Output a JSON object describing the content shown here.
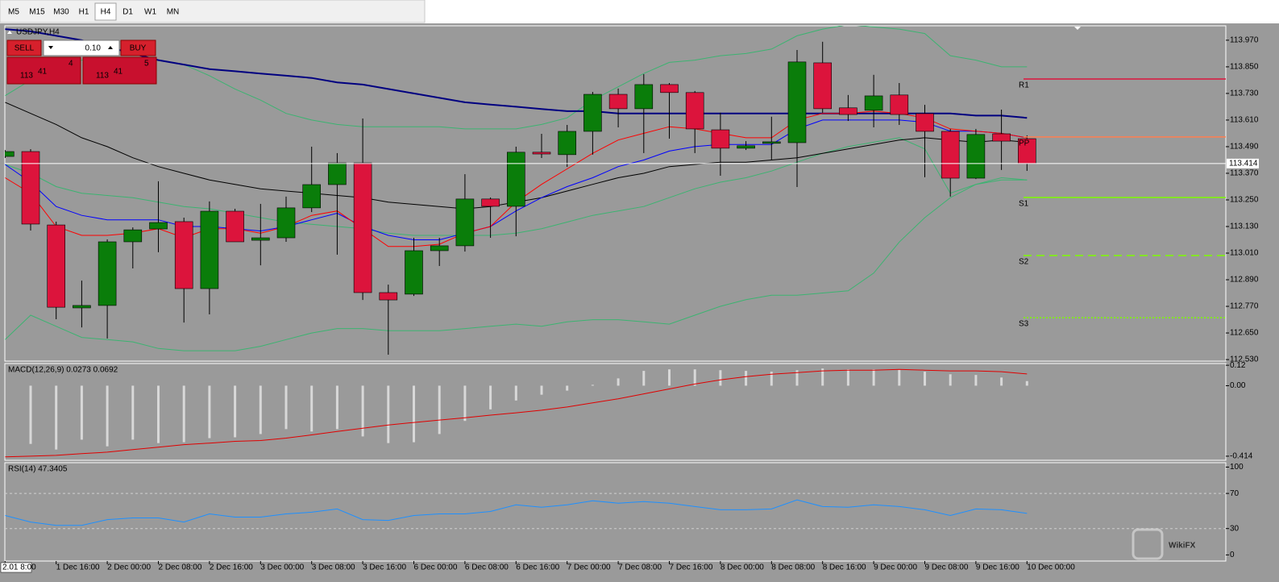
{
  "toolbar": {
    "timeframes": [
      "M5",
      "M15",
      "M30",
      "H1",
      "H4",
      "D1",
      "W1",
      "MN"
    ],
    "active": "H4"
  },
  "trade_panel": {
    "sell_label": "SELL",
    "buy_label": "BUY",
    "volume": "0.10",
    "sell_price": {
      "big": "113",
      "main": "41",
      "small": "4"
    },
    "buy_price": {
      "big": "113",
      "main": "41",
      "small": "5"
    }
  },
  "price_chart": {
    "type": "candlestick",
    "title": "USDJPY,H4",
    "categories": [
      "2.01 8:00",
      null,
      "1 Dec 16:00",
      null,
      "2 Dec 00:00",
      null,
      "2 Dec 08:00",
      null,
      "2 Dec 16:00",
      null,
      "3 Dec 00:00",
      null,
      "3 Dec 08:00",
      null,
      "3 Dec 16:00",
      null,
      "6 Dec 00:00",
      null,
      "6 Dec 08:00",
      null,
      "6 Dec 16:00",
      null,
      "7 Dec 00:00",
      null,
      "7 Dec 08:00",
      null,
      "7 Dec 16:00",
      null,
      "8 Dec 00:00",
      null,
      "8 Dec 08:00",
      null,
      "8 Dec 16:00",
      null,
      "9 Dec 00:00",
      null,
      "9 Dec 08:00",
      null,
      "9 Dec 16:00",
      null,
      "10 Dec 00:00"
    ],
    "open": [
      113.446,
      113.468,
      113.137,
      112.763,
      112.774,
      113.061,
      113.119,
      113.152,
      112.85,
      113.199,
      113.068,
      113.079,
      113.214,
      113.319,
      113.417,
      112.832,
      112.825,
      113.021,
      113.043,
      113.254,
      113.221,
      113.465,
      113.454,
      113.559,
      113.726,
      113.661,
      113.77,
      113.734,
      113.566,
      113.483,
      113.505,
      113.508,
      113.868,
      113.665,
      113.654,
      113.723,
      113.639,
      113.559,
      113.348,
      113.548,
      113.526
    ],
    "high": [
      113.475,
      113.479,
      113.152,
      112.886,
      113.072,
      113.126,
      113.334,
      113.17,
      113.243,
      113.21,
      113.232,
      113.265,
      113.49,
      113.461,
      113.617,
      112.868,
      113.079,
      113.079,
      113.366,
      113.261,
      113.49,
      113.548,
      113.588,
      113.737,
      113.752,
      113.817,
      113.777,
      113.741,
      113.643,
      113.515,
      113.625,
      113.926,
      113.963,
      113.723,
      113.814,
      113.777,
      113.679,
      113.57,
      113.57,
      113.657,
      113.541
    ],
    "low": [
      113.439,
      113.112,
      112.712,
      112.675,
      112.625,
      112.941,
      113.014,
      112.697,
      112.734,
      113.061,
      112.955,
      113.061,
      113.195,
      113.003,
      112.799,
      112.552,
      112.817,
      112.952,
      113.017,
      113.079,
      113.086,
      113.439,
      113.399,
      113.454,
      113.577,
      113.461,
      113.526,
      113.461,
      113.359,
      113.475,
      113.432,
      113.308,
      113.643,
      113.606,
      113.577,
      113.588,
      113.352,
      113.265,
      113.344,
      113.385,
      113.381
    ],
    "close": [
      113.468,
      113.141,
      112.766,
      112.774,
      113.061,
      113.115,
      113.148,
      112.85,
      113.199,
      113.061,
      113.079,
      113.214,
      113.319,
      113.417,
      112.832,
      112.799,
      113.021,
      113.043,
      113.254,
      113.221,
      113.465,
      113.457,
      113.559,
      113.726,
      113.661,
      113.77,
      113.734,
      113.57,
      113.483,
      113.494,
      113.512,
      113.872,
      113.661,
      113.635,
      113.719,
      113.635,
      113.559,
      113.348,
      113.545,
      113.515,
      113.414
    ],
    "up_color": "#0a7d0a",
    "down_color": "#dc143c",
    "ylim": [
      112.523,
      114.035
    ],
    "yticks": [
      {
        "value": 113.97,
        "label": "113.970"
      },
      {
        "value": 113.85,
        "label": "113.850"
      },
      {
        "value": 113.73,
        "label": "113.730"
      },
      {
        "value": 113.61,
        "label": "113.610"
      },
      {
        "value": 113.49,
        "label": "113.490"
      },
      {
        "value": 113.37,
        "label": "113.370"
      },
      {
        "value": 113.25,
        "label": "113.250"
      },
      {
        "value": 113.13,
        "label": "113.130"
      },
      {
        "value": 113.01,
        "label": "113.010"
      },
      {
        "value": 112.89,
        "label": "112.890"
      },
      {
        "value": 112.77,
        "label": "112.770"
      },
      {
        "value": 112.65,
        "label": "112.650"
      },
      {
        "value": 112.53,
        "label": "112.530"
      }
    ],
    "lines": [
      {
        "color": "#3cb371",
        "values": [
          113.72,
          113.79,
          113.84,
          113.88,
          113.89,
          113.89,
          113.88,
          113.86,
          113.81,
          113.75,
          113.7,
          113.64,
          113.61,
          113.59,
          113.58,
          113.58,
          113.58,
          113.58,
          113.57,
          113.57,
          113.57,
          113.59,
          113.62,
          113.7,
          113.76,
          113.82,
          113.87,
          113.88,
          113.9,
          113.91,
          113.93,
          113.99,
          114.02,
          114.04,
          114.03,
          114.02,
          114.0,
          113.9,
          113.88,
          113.85,
          113.85
        ]
      },
      {
        "color": "#3cb371",
        "values": [
          113.41,
          113.37,
          113.31,
          113.28,
          113.27,
          113.26,
          113.24,
          113.22,
          113.21,
          113.19,
          113.17,
          113.15,
          113.14,
          113.13,
          113.12,
          113.1,
          113.09,
          113.09,
          113.09,
          113.09,
          113.1,
          113.12,
          113.15,
          113.18,
          113.2,
          113.22,
          113.26,
          113.3,
          113.33,
          113.35,
          113.38,
          113.42,
          113.46,
          113.49,
          113.51,
          113.53,
          113.48,
          113.28,
          113.32,
          113.34,
          113.34
        ]
      },
      {
        "color": "#3cb371",
        "values": [
          112.62,
          112.73,
          112.68,
          112.63,
          112.62,
          112.61,
          112.58,
          112.57,
          112.57,
          112.57,
          112.59,
          112.62,
          112.65,
          112.67,
          112.67,
          112.66,
          112.66,
          112.66,
          112.67,
          112.68,
          112.69,
          112.68,
          112.7,
          112.71,
          112.71,
          112.7,
          112.69,
          112.73,
          112.77,
          112.8,
          112.82,
          112.82,
          112.83,
          112.84,
          112.92,
          113.06,
          113.17,
          113.26,
          113.32,
          113.35,
          113.34
        ]
      },
      {
        "color": "#000080",
        "values": [
          114.02,
          114.01,
          113.99,
          113.97,
          113.94,
          113.91,
          113.88,
          113.86,
          113.84,
          113.83,
          113.82,
          113.81,
          113.8,
          113.78,
          113.77,
          113.75,
          113.73,
          113.71,
          113.69,
          113.68,
          113.67,
          113.66,
          113.65,
          113.65,
          113.64,
          113.64,
          113.64,
          113.64,
          113.64,
          113.64,
          113.64,
          113.64,
          113.64,
          113.64,
          113.64,
          113.64,
          113.64,
          113.64,
          113.63,
          113.63,
          113.62
        ]
      },
      {
        "color": "#000000",
        "values": [
          113.69,
          113.64,
          113.59,
          113.53,
          113.49,
          113.44,
          113.4,
          113.37,
          113.34,
          113.32,
          113.3,
          113.29,
          113.28,
          113.27,
          113.26,
          113.24,
          113.23,
          113.22,
          113.21,
          113.22,
          113.24,
          113.26,
          113.29,
          113.32,
          113.35,
          113.37,
          113.4,
          113.41,
          113.42,
          113.42,
          113.43,
          113.44,
          113.46,
          113.48,
          113.5,
          113.52,
          113.53,
          113.52,
          113.51,
          113.52,
          113.51
        ]
      },
      {
        "color": "#0000ff",
        "values": [
          113.41,
          113.33,
          113.22,
          113.18,
          113.16,
          113.16,
          113.16,
          113.13,
          113.13,
          113.12,
          113.11,
          113.13,
          113.16,
          113.19,
          113.13,
          113.09,
          113.07,
          113.07,
          113.1,
          113.13,
          113.2,
          113.26,
          113.31,
          113.35,
          113.4,
          113.43,
          113.47,
          113.49,
          113.5,
          113.5,
          113.5,
          113.57,
          113.61,
          113.61,
          113.61,
          113.61,
          113.6,
          113.56,
          113.56,
          113.55,
          113.53
        ]
      },
      {
        "color": "#ff0000",
        "values": [
          113.35,
          113.28,
          113.13,
          113.09,
          113.09,
          113.1,
          113.12,
          113.08,
          113.12,
          113.12,
          113.1,
          113.13,
          113.18,
          113.2,
          113.12,
          113.04,
          113.04,
          113.05,
          113.1,
          113.13,
          113.24,
          113.32,
          113.39,
          113.46,
          113.52,
          113.55,
          113.58,
          113.57,
          113.55,
          113.53,
          113.53,
          113.61,
          113.64,
          113.64,
          113.65,
          113.64,
          113.62,
          113.57,
          113.56,
          113.55,
          113.53
        ]
      }
    ],
    "levels": [
      {
        "name": "R1",
        "value": 113.795,
        "color": "#dc143c",
        "style": "solid"
      },
      {
        "name": "PP",
        "value": 113.534,
        "color": "#ff7f50",
        "style": "solid"
      },
      {
        "name": "S1",
        "value": 113.261,
        "color": "#7cfc00",
        "style": "solid"
      },
      {
        "name": "S2",
        "value": 112.999,
        "color": "#7cfc00",
        "style": "dashed"
      },
      {
        "name": "S3",
        "value": 112.719,
        "color": "#7cfc00",
        "style": "dotted"
      }
    ],
    "current_price": 113.414
  },
  "macd": {
    "type": "bar",
    "title": "MACD(12,26,9) 0.0273 0.0692",
    "values": [
      null,
      -0.342,
      -0.375,
      -0.317,
      -0.356,
      -0.317,
      -0.337,
      -0.332,
      -0.308,
      -0.303,
      -0.284,
      -0.255,
      -0.269,
      -0.255,
      -0.298,
      -0.337,
      -0.332,
      -0.284,
      -0.207,
      -0.139,
      -0.087,
      -0.053,
      -0.029,
      0.005,
      0.043,
      0.087,
      0.096,
      0.096,
      0.091,
      0.087,
      0.082,
      0.091,
      0.101,
      0.096,
      0.096,
      0.096,
      0.082,
      0.067,
      0.063,
      0.048,
      0.027
    ],
    "color": "#d8d8d8",
    "signal": {
      "color": "#e00000",
      "values": [
        -0.418,
        -0.414,
        -0.409,
        -0.399,
        -0.39,
        -0.375,
        -0.361,
        -0.346,
        -0.337,
        -0.327,
        -0.322,
        -0.308,
        -0.289,
        -0.269,
        -0.25,
        -0.231,
        -0.216,
        -0.202,
        -0.188,
        -0.173,
        -0.159,
        -0.144,
        -0.125,
        -0.101,
        -0.077,
        -0.048,
        -0.019,
        0.01,
        0.034,
        0.053,
        0.067,
        0.077,
        0.087,
        0.091,
        0.091,
        0.096,
        0.091,
        0.087,
        0.087,
        0.082,
        0.069
      ]
    },
    "ylim": [
      -0.438,
      0.13
    ],
    "yticks": [
      0.12,
      {
        "value": 0,
        "label": "0.00"
      },
      -0.414
    ]
  },
  "rsi": {
    "type": "line",
    "title": "RSI(14) 47.3405",
    "values": [
      44.9,
      37.4,
      33.6,
      33.6,
      40.2,
      42.1,
      42.1,
      37.4,
      46.7,
      43.0,
      43.0,
      46.7,
      48.6,
      52.3,
      40.2,
      39.3,
      44.9,
      46.7,
      46.7,
      49.5,
      57.0,
      54.2,
      57.0,
      61.7,
      58.9,
      60.7,
      58.9,
      55.1,
      51.4,
      51.4,
      52.3,
      62.6,
      55.1,
      54.2,
      57.0,
      55.1,
      51.4,
      44.9,
      52.3,
      51.4,
      47.3
    ],
    "color": "#1e90ff",
    "ylim": [
      -7,
      105
    ],
    "yticks": [
      100,
      70,
      30,
      0
    ],
    "levels": [
      70,
      30
    ]
  },
  "watermark": "WikiFX"
}
